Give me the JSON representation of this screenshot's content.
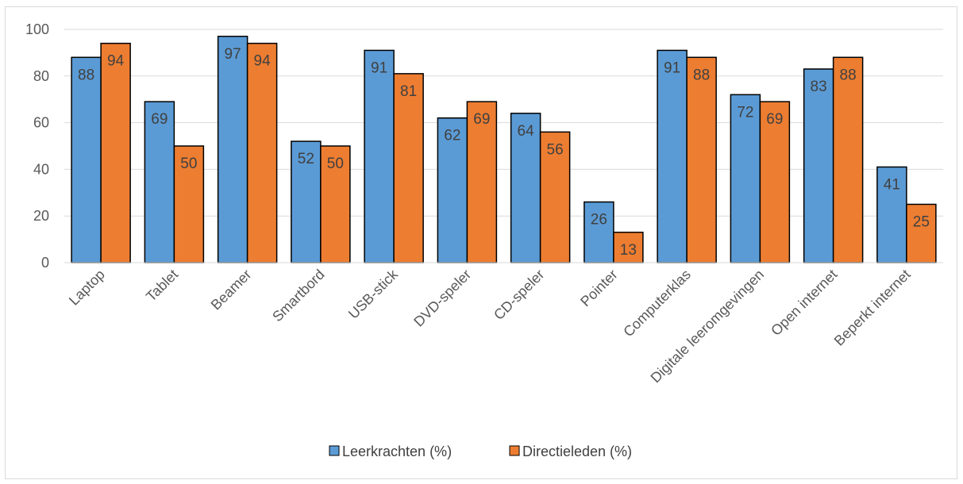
{
  "chart_data": {
    "type": "bar",
    "categories": [
      "Laptop",
      "Tablet",
      "Beamer",
      "Smartbord",
      "USB-stick",
      "DVD-speler",
      "CD-speler",
      "Pointer",
      "Computerklas",
      "Digitale leeromgevingen",
      "Open internet",
      "Beperkt internet"
    ],
    "series": [
      {
        "name": "Leerkrachten (%)",
        "values": [
          88,
          69,
          97,
          52,
          91,
          62,
          64,
          26,
          91,
          72,
          83,
          41
        ],
        "color": "#5b9bd5"
      },
      {
        "name": "Directieleden (%)",
        "values": [
          94,
          50,
          94,
          50,
          81,
          69,
          56,
          13,
          88,
          69,
          88,
          25
        ],
        "color": "#ed7d31"
      }
    ],
    "ylim": [
      0,
      100
    ],
    "yticks": [
      0,
      20,
      40,
      60,
      80,
      100
    ],
    "grid": true,
    "legend": "bottom",
    "data_labels": true
  }
}
